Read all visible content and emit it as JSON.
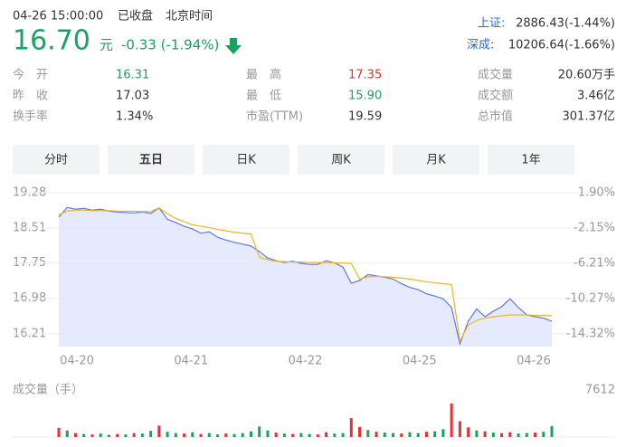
{
  "header": {
    "time": "04-26 15:00:00",
    "status": "已收盘",
    "zone": "北京时间"
  },
  "quote": {
    "price": "16.70",
    "unit": "元",
    "change": "-0.33 (-1.94%)",
    "color": "#1aa260"
  },
  "indices": [
    {
      "name": "上证:",
      "value": "2886.43(-1.44%)"
    },
    {
      "name": "深成:",
      "value": "10206.64(-1.66%)"
    }
  ],
  "stats": [
    [
      {
        "label": "今　开",
        "value": "16.31",
        "color": "#1aa260"
      },
      {
        "label": "最　高",
        "value": "17.35",
        "color": "#e93030"
      },
      {
        "label": "成交量",
        "value": "20.60万手"
      }
    ],
    [
      {
        "label": "昨　收",
        "value": "17.03"
      },
      {
        "label": "最　低",
        "value": "15.90",
        "color": "#1aa260"
      },
      {
        "label": "成交额",
        "value": "3.46亿"
      }
    ],
    [
      {
        "label": "换手率",
        "value": "1.34%"
      },
      {
        "label": "市盈(TTM)",
        "value": "19.59"
      },
      {
        "label": "总市值",
        "value": "301.37亿"
      }
    ]
  ],
  "tabs": [
    "分时",
    "五日",
    "日K",
    "周K",
    "月K",
    "1年"
  ],
  "active_tab": 1,
  "chart_data": [
    {
      "type": "line",
      "x_labels": [
        "04-20",
        "04-21",
        "04-22",
        "04-25",
        "04-26"
      ],
      "ylim": [
        15.93,
        19.28
      ],
      "yticks": [
        19.28,
        18.51,
        17.75,
        16.98,
        16.21
      ],
      "y2lim": [
        -15.78,
        1.9
      ],
      "y2ticks": [
        {
          "value": 1.9,
          "label": "1.90%"
        },
        {
          "value": -2.15,
          "label": "-2.15%"
        },
        {
          "value": -6.21,
          "label": "-6.21%"
        },
        {
          "value": -10.27,
          "label": "-10.27%"
        },
        {
          "value": -14.32,
          "label": "-14.32%"
        }
      ],
      "grid": true,
      "series": [
        {
          "color": "#5b79e6",
          "fill": "#dfe5fb",
          "values": [
            18.75,
            18.96,
            18.92,
            18.94,
            18.9,
            18.92,
            18.88,
            18.86,
            18.85,
            18.84,
            18.86,
            18.83,
            18.95,
            18.7,
            18.63,
            18.55,
            18.49,
            18.4,
            18.43,
            18.31,
            18.25,
            18.2,
            18.16,
            18.12,
            18.0,
            17.86,
            17.8,
            17.76,
            17.79,
            17.74,
            17.72,
            17.72,
            17.8,
            17.75,
            17.66,
            17.31,
            17.37,
            17.5,
            17.47,
            17.44,
            17.4,
            17.3,
            17.22,
            17.17,
            17.08,
            17.03,
            16.97,
            16.78,
            15.99,
            16.48,
            16.75,
            16.58,
            16.7,
            16.8,
            16.97,
            16.78,
            16.62,
            16.58,
            16.55,
            16.48
          ]
        },
        {
          "color": "#f2b324",
          "values": [
            18.8,
            18.88,
            18.9,
            18.9,
            18.89,
            18.89,
            18.89,
            18.88,
            18.88,
            18.88,
            18.87,
            18.87,
            18.95,
            18.82,
            18.72,
            18.65,
            18.58,
            18.55,
            18.52,
            18.48,
            18.45,
            18.42,
            18.4,
            18.38,
            17.88,
            17.82,
            17.79,
            17.78,
            17.77,
            17.77,
            17.76,
            17.76,
            17.76,
            17.75,
            17.75,
            17.74,
            17.4,
            17.45,
            17.46,
            17.45,
            17.44,
            17.42,
            17.4,
            17.37,
            17.34,
            17.32,
            17.3,
            17.28,
            16.05,
            16.4,
            16.5,
            16.55,
            16.58,
            16.6,
            16.62,
            16.62,
            16.62,
            16.61,
            16.61,
            16.6
          ]
        }
      ]
    },
    {
      "type": "bar",
      "title": "成交量（手）",
      "ylim": [
        0,
        7612
      ],
      "yticks": [
        7612
      ],
      "values": [
        2100,
        1500,
        900,
        700,
        600,
        800,
        500,
        700,
        600,
        900,
        800,
        1400,
        2600,
        1200,
        900,
        800,
        1100,
        700,
        900,
        600,
        800,
        700,
        900,
        1300,
        2400,
        1500,
        1000,
        800,
        700,
        900,
        700,
        600,
        1100,
        800,
        900,
        4300,
        2300,
        1600,
        1200,
        1000,
        900,
        800,
        1100,
        900,
        1200,
        1300,
        1800,
        7612,
        3600,
        2200,
        1500,
        1300,
        1000,
        900,
        1100,
        800,
        900,
        1000,
        1200,
        2500
      ],
      "colors": [
        "#e93030",
        "#1aa260",
        "#e93030",
        "#1aa260",
        "#e93030",
        "#1aa260",
        "#1aa260",
        "#e93030",
        "#1aa260",
        "#e93030",
        "#1aa260",
        "#1aa260",
        "#e93030",
        "#1aa260",
        "#1aa260",
        "#e93030",
        "#1aa260",
        "#e93030",
        "#1aa260",
        "#1aa260",
        "#e93030",
        "#1aa260",
        "#1aa260",
        "#1aa260",
        "#1aa260",
        "#1aa260",
        "#e93030",
        "#1aa260",
        "#e93030",
        "#1aa260",
        "#1aa260",
        "#e93030",
        "#e93030",
        "#1aa260",
        "#1aa260",
        "#e93030",
        "#e93030",
        "#1aa260",
        "#e93030",
        "#1aa260",
        "#1aa260",
        "#e93030",
        "#1aa260",
        "#1aa260",
        "#e93030",
        "#1aa260",
        "#1aa260",
        "#e93030",
        "#e93030",
        "#e93030",
        "#1aa260",
        "#e93030",
        "#1aa260",
        "#e93030",
        "#e93030",
        "#1aa260",
        "#1aa260",
        "#e93030",
        "#1aa260",
        "#1aa260"
      ]
    }
  ]
}
